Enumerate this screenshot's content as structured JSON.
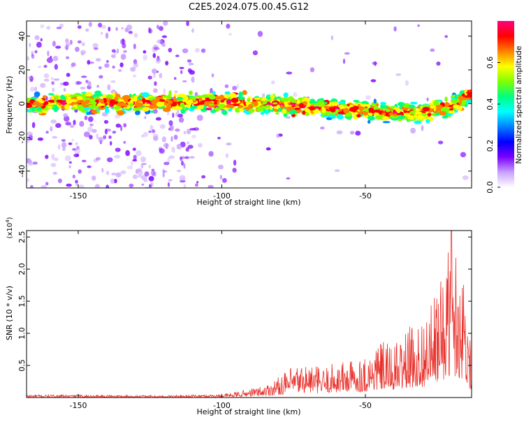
{
  "title": "C2E5.2024.075.00.45.G12",
  "chart_data": [
    {
      "type": "heatmap",
      "xlabel": "Height of straight line (km)",
      "ylabel": "Frequency (Hz)",
      "xlim": [
        -168,
        -13
      ],
      "ylim": [
        -50,
        49
      ],
      "x_ticks": [
        -150,
        -100,
        -50
      ],
      "y_ticks": [
        -40,
        -20,
        0,
        20,
        40
      ],
      "colorbar": {
        "label": "Normalized spectral amplitude",
        "range": [
          0,
          0.8
        ],
        "ticks": [
          0.0,
          0.2,
          0.4,
          0.6
        ],
        "colors": [
          "#ffffff",
          "#c8a0ff",
          "#7a00ff",
          "#0000ff",
          "#0080ff",
          "#00ffff",
          "#00ff80",
          "#80ff00",
          "#ffff00",
          "#ff8000",
          "#ff0000",
          "#ff0080"
        ]
      },
      "ridge": {
        "description_points_x": [
          -168,
          -150,
          -130,
          -112,
          -100,
          -90,
          -80,
          -70,
          -60,
          -50,
          -40,
          -30,
          -20,
          -13
        ],
        "description_points_y": [
          0,
          1,
          1,
          1,
          1,
          0,
          -1,
          -2,
          -3,
          -4,
          -5,
          -6,
          -2,
          6
        ],
        "seed": 12345
      }
    },
    {
      "type": "line",
      "xlabel": "Height of straight line (km)",
      "ylabel": "SNR (10 * v/v)",
      "y_scale_label": "(x10",
      "y_scale_exp": "4",
      "y_scale_close": ")",
      "xlim": [
        -168,
        -13
      ],
      "ylim": [
        0,
        2.6
      ],
      "x_ticks": [
        -150,
        -100,
        -50
      ],
      "y_ticks": [
        0.5,
        1.0,
        1.5,
        2.0,
        2.5
      ],
      "line_color": "#e8302a",
      "envelope_x": [
        -168,
        -150,
        -120,
        -100,
        -95,
        -85,
        -80,
        -75,
        -70,
        -65,
        -60,
        -55,
        -50,
        -45,
        -40,
        -35,
        -30,
        -25,
        -20,
        -15,
        -13
      ],
      "envelope_y": [
        0.04,
        0.04,
        0.03,
        0.05,
        0.08,
        0.18,
        0.3,
        0.45,
        0.5,
        0.42,
        0.52,
        0.55,
        0.6,
        0.8,
        0.75,
        1.0,
        1.1,
        1.5,
        2.3,
        1.8,
        0.5
      ],
      "peak": {
        "x": -20,
        "y": 2.6
      },
      "seed": 777
    }
  ]
}
